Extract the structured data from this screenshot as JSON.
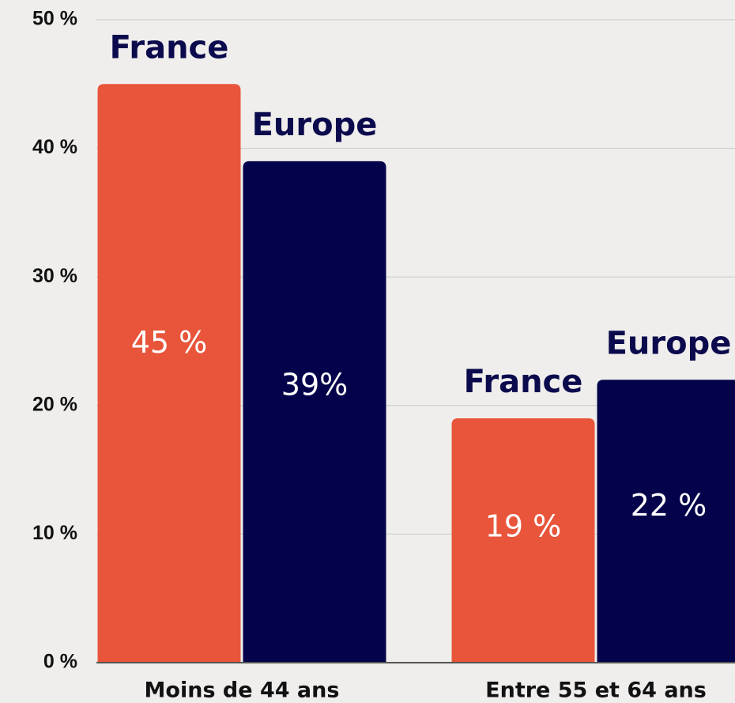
{
  "chart_data": {
    "type": "bar",
    "categories": [
      "Moins de 44 ans",
      "Entre 55 et 64 ans"
    ],
    "series": [
      {
        "name": "France",
        "color": "#e8553a",
        "values": [
          45,
          19
        ],
        "value_labels": [
          "45 %",
          "19 %"
        ]
      },
      {
        "name": "Europe",
        "color": "#03024a",
        "values": [
          39,
          22
        ],
        "value_labels": [
          "39%",
          "22 %"
        ]
      }
    ],
    "ylim": [
      0,
      50
    ],
    "yticks": [
      {
        "value": 0,
        "label": "0 %"
      },
      {
        "value": 10,
        "label": "10 %"
      },
      {
        "value": 20,
        "label": "20 %"
      },
      {
        "value": 30,
        "label": "30 %"
      },
      {
        "value": 40,
        "label": "40 %"
      },
      {
        "value": 50,
        "label": "50 %"
      }
    ],
    "grid": true
  }
}
